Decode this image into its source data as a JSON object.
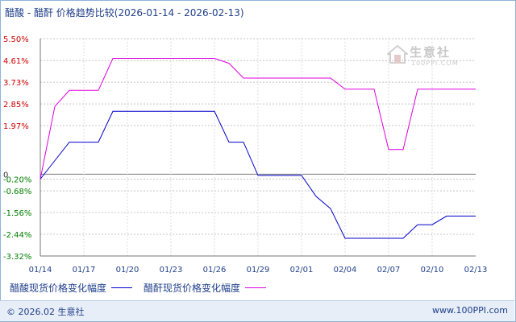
{
  "title": "醋酸 - 醋酐 价格趋势比较(2026-01-14 - 2026-02-13)",
  "watermark": {
    "brand": "生意社",
    "url": "100PPI.COM"
  },
  "footer": {
    "copyright": "© 2026.02 生意社",
    "site": "www.100PPI.com"
  },
  "chart_data": {
    "type": "line",
    "title": "醋酸 - 醋酐 价格趋势比较(2026-01-14 - 2026-02-13)",
    "xlabel": "",
    "ylabel": "",
    "x_ticks": [
      "01/14",
      "01/17",
      "01/20",
      "01/23",
      "01/26",
      "01/29",
      "02/01",
      "02/04",
      "02/07",
      "02/10",
      "02/13"
    ],
    "x_tick_day_index": [
      0,
      3,
      6,
      9,
      12,
      15,
      18,
      21,
      24,
      27,
      30
    ],
    "y_ticks": [
      "5.50%",
      "4.61%",
      "3.73%",
      "2.85%",
      "1.97%",
      "0",
      "-0.20%",
      "-0.68%",
      "-1.56%",
      "-2.44%",
      "-3.32%"
    ],
    "ylim": [
      -3.32,
      5.5
    ],
    "grid": "horizontal dashed",
    "legend_position": "bottom",
    "series": [
      {
        "name": "醋酸现货价格变化幅度",
        "color": "#0000cc",
        "points": [
          [
            0,
            -0.2
          ],
          [
            1,
            0.55
          ],
          [
            2,
            1.3
          ],
          [
            3,
            1.3
          ],
          [
            4,
            1.3
          ],
          [
            5,
            2.55
          ],
          [
            6,
            2.55
          ],
          [
            7,
            2.55
          ],
          [
            8,
            2.55
          ],
          [
            9,
            2.55
          ],
          [
            10,
            2.55
          ],
          [
            11,
            2.55
          ],
          [
            12,
            2.55
          ],
          [
            13,
            1.3
          ],
          [
            14,
            1.3
          ],
          [
            15,
            -0.05
          ],
          [
            16,
            -0.05
          ],
          [
            17,
            -0.05
          ],
          [
            18,
            -0.05
          ],
          [
            19,
            -0.9
          ],
          [
            20,
            -1.4
          ],
          [
            21,
            -2.6
          ],
          [
            22,
            -2.6
          ],
          [
            23,
            -2.6
          ],
          [
            24,
            -2.6
          ],
          [
            25,
            -2.6
          ],
          [
            26,
            -2.05
          ],
          [
            27,
            -2.05
          ],
          [
            28,
            -1.7
          ],
          [
            29,
            -1.7
          ],
          [
            30,
            -1.7
          ]
        ]
      },
      {
        "name": "醋酐现货价格变化幅度",
        "color": "#e000e0",
        "points": [
          [
            0,
            -0.2
          ],
          [
            1,
            2.75
          ],
          [
            2,
            3.4
          ],
          [
            3,
            3.4
          ],
          [
            4,
            3.4
          ],
          [
            5,
            4.7
          ],
          [
            6,
            4.7
          ],
          [
            7,
            4.7
          ],
          [
            8,
            4.7
          ],
          [
            9,
            4.7
          ],
          [
            10,
            4.7
          ],
          [
            11,
            4.7
          ],
          [
            12,
            4.7
          ],
          [
            13,
            4.5
          ],
          [
            14,
            3.9
          ],
          [
            15,
            3.9
          ],
          [
            16,
            3.9
          ],
          [
            17,
            3.9
          ],
          [
            18,
            3.9
          ],
          [
            19,
            3.9
          ],
          [
            20,
            3.9
          ],
          [
            21,
            3.45
          ],
          [
            22,
            3.45
          ],
          [
            23,
            3.45
          ],
          [
            24,
            1.0
          ],
          [
            25,
            1.0
          ],
          [
            26,
            3.45
          ],
          [
            27,
            3.45
          ],
          [
            28,
            3.45
          ],
          [
            29,
            3.45
          ],
          [
            30,
            3.45
          ]
        ]
      }
    ]
  }
}
